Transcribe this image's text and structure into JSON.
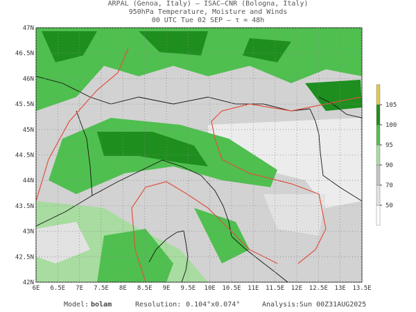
{
  "header": {
    "line1": "ARPAL (Genoa, Italy)  –  ISAC–CNR (Bologna, Italy)",
    "line2": "950hPa Temperature, Moisture and Winds",
    "line3": "00 UTC Tue 02 SEP  –  τ = 48h"
  },
  "map": {
    "lon_lim": [
      6,
      13.5
    ],
    "lat_lim": [
      42,
      47
    ],
    "lon_ticks": [
      {
        "value": 6,
        "label": "6E"
      },
      {
        "value": 6.5,
        "label": "6.5E"
      },
      {
        "value": 7,
        "label": "7E"
      },
      {
        "value": 7.5,
        "label": "7.5E"
      },
      {
        "value": 8,
        "label": "8E"
      },
      {
        "value": 8.5,
        "label": "8.5E"
      },
      {
        "value": 9,
        "label": "9E"
      },
      {
        "value": 9.5,
        "label": "9.5E"
      },
      {
        "value": 10,
        "label": "10E"
      },
      {
        "value": 10.5,
        "label": "10.5E"
      },
      {
        "value": 11,
        "label": "11E"
      },
      {
        "value": 11.5,
        "label": "11.5E"
      },
      {
        "value": 12,
        "label": "12E"
      },
      {
        "value": 12.5,
        "label": "12.5E"
      },
      {
        "value": 13,
        "label": "13E"
      },
      {
        "value": 13.5,
        "label": "13.5E"
      }
    ],
    "lat_ticks": [
      {
        "value": 42,
        "label": "42N"
      },
      {
        "value": 42.5,
        "label": "42.5N"
      },
      {
        "value": 43,
        "label": "43N"
      },
      {
        "value": 43.5,
        "label": "43.5N"
      },
      {
        "value": 44,
        "label": "44N"
      },
      {
        "value": 44.5,
        "label": "44.5N"
      },
      {
        "value": 45,
        "label": "45N"
      },
      {
        "value": 45.5,
        "label": "45.5N"
      },
      {
        "value": 46,
        "label": "46N"
      },
      {
        "value": 46.5,
        "label": "46.5N"
      },
      {
        "value": 47,
        "label": "47N"
      }
    ]
  },
  "colorbar": {
    "ticks": [
      50,
      70,
      90,
      95,
      100,
      105
    ],
    "colors": [
      "#ffffff",
      "#e2e2e2",
      "#c4c4c4",
      "#a8dca0",
      "#4fbf4f",
      "#1e8f1e",
      "#e0c850"
    ]
  },
  "footer": {
    "model_label": "Model:",
    "model": "bolam",
    "resolution_label": "Resolution:",
    "resolution": "0.104°x0.074°",
    "analysis_label": "Analysis:",
    "analysis": "Sun 00Z31AUG2025"
  }
}
